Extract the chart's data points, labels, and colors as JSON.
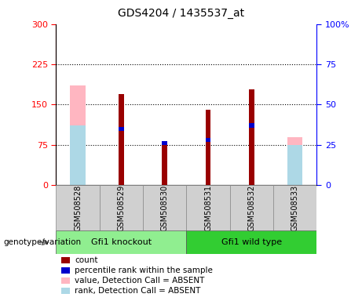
{
  "title": "GDS4204 / 1435537_at",
  "samples": [
    "GSM508528",
    "GSM508529",
    "GSM508530",
    "GSM508531",
    "GSM508532",
    "GSM508533"
  ],
  "count_values": [
    0,
    170,
    82,
    140,
    178,
    0
  ],
  "rank_percent": [
    0,
    35,
    26,
    28,
    37,
    0
  ],
  "absent_value_values": [
    185,
    0,
    0,
    0,
    0,
    90
  ],
  "absent_rank_percent": [
    37,
    0,
    0,
    0,
    0,
    25
  ],
  "ylim_left": [
    0,
    300
  ],
  "ylim_right": [
    0,
    100
  ],
  "yticks_left": [
    0,
    75,
    150,
    225,
    300
  ],
  "yticks_right": [
    0,
    25,
    50,
    75,
    100
  ],
  "ytick_labels_left": [
    "0",
    "75",
    "150",
    "225",
    "300"
  ],
  "ytick_labels_right": [
    "0",
    "25",
    "50",
    "75",
    "100%"
  ],
  "color_count": "#990000",
  "color_rank": "#0000CC",
  "color_absent_value": "#FFB6C1",
  "color_absent_rank": "#ADD8E6",
  "absent_bar_width": 0.35,
  "count_bar_width": 0.12,
  "group1_label": "Gfi1 knockout",
  "group2_label": "Gfi1 wild type",
  "group1_color": "#90EE90",
  "group2_color": "#32CD32",
  "genotype_label": "genotype/variation",
  "legend_items": [
    {
      "color": "#990000",
      "label": "count"
    },
    {
      "color": "#0000CC",
      "label": "percentile rank within the sample"
    },
    {
      "color": "#FFB6C1",
      "label": "value, Detection Call = ABSENT"
    },
    {
      "color": "#ADD8E6",
      "label": "rank, Detection Call = ABSENT"
    }
  ]
}
